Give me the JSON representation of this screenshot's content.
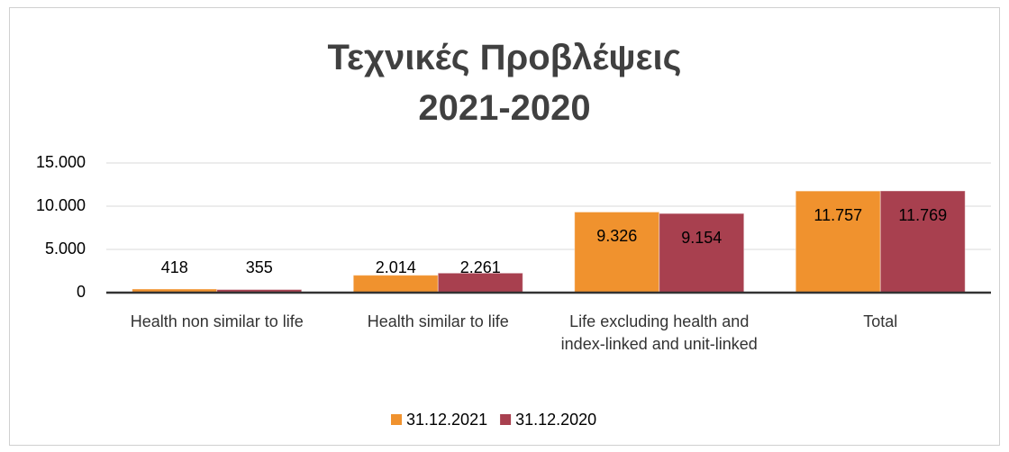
{
  "chart_data": {
    "type": "bar",
    "title": "Τεχνικές Προβλέψεις 2021-2020",
    "categories": [
      "Health non similar to life",
      "Health similar to life",
      "Life excluding health and index-linked and unit-linked",
      "Total"
    ],
    "series": [
      {
        "name": "31.12.2021",
        "color": "#f0922e",
        "values": [
          418,
          2014,
          9326,
          11757
        ],
        "value_labels": [
          "418",
          "2.014",
          "9.326",
          "11.757"
        ]
      },
      {
        "name": "31.12.2020",
        "color": "#a8404f",
        "values": [
          355,
          2261,
          9154,
          11769
        ],
        "value_labels": [
          "355",
          "2.261",
          "9.154",
          "11.769"
        ]
      }
    ],
    "ylim": [
      0,
      15000
    ],
    "yticks": [
      0,
      {
        "value": 5000,
        "label": "5.000"
      },
      {
        "value": 10000,
        "label": "10.000"
      },
      {
        "value": 15000,
        "label": "15.000"
      }
    ],
    "grid": true,
    "legend": "bottom"
  }
}
